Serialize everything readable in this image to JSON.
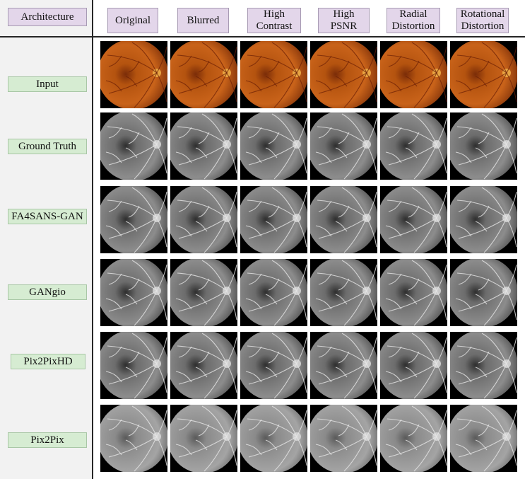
{
  "header": {
    "corner_label": "Architecture",
    "columns": [
      "Original",
      "Blurred",
      "High\nContrast",
      "High\nPSNR",
      "Radial\nDistortion",
      "Rotational\nDistortion"
    ]
  },
  "rows": [
    {
      "label": "Input",
      "kind": "color"
    },
    {
      "label": "Ground Truth",
      "kind": "gray"
    },
    {
      "label": "FA4SANS-GAN",
      "kind": "gray"
    },
    {
      "label": "GANgio",
      "kind": "gray"
    },
    {
      "label": "Pix2PixHD",
      "kind": "gray"
    },
    {
      "label": "Pix2Pix",
      "kind": "gray-light"
    }
  ],
  "colors": {
    "header_fill": "#e3d6ea",
    "row_label_fill": "#d6ecd2",
    "left_panel": "#f2f2f2",
    "divider": "#262626"
  }
}
